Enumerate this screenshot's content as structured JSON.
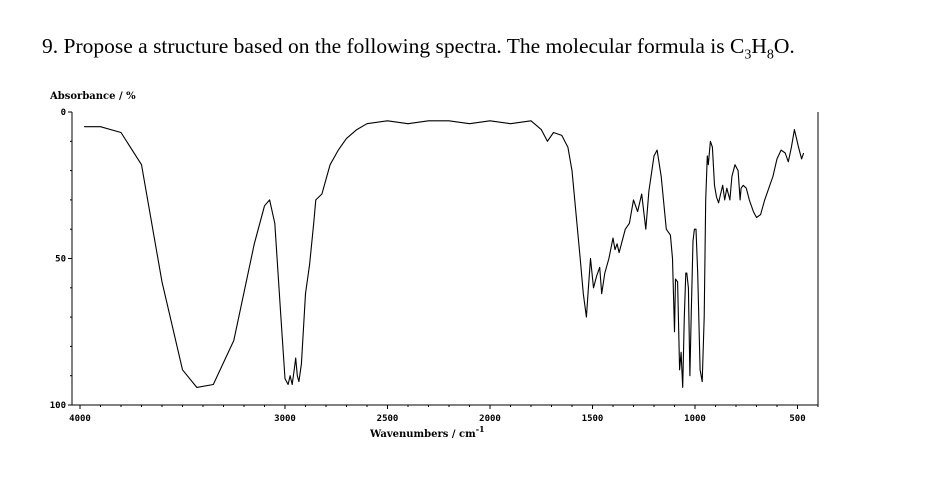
{
  "question": {
    "prefix": "9. Propose a structure based on the following spectra. The molecular formula is C",
    "sub1": "3",
    "mid": "H",
    "sub2": "8",
    "suffix": "O."
  },
  "chart_data": {
    "type": "line",
    "title": "",
    "ylabel": "Absorbance / %",
    "xlabel_main": "Wavenumbers / cm",
    "xlabel_sup": "-1",
    "xlim": [
      4000,
      400
    ],
    "ylim": [
      0,
      100
    ],
    "x_reversed": true,
    "y_reversed": true,
    "y_ticks": [
      "0",
      "50",
      "100"
    ],
    "x_ticks": [
      "4000",
      "3000",
      "2500",
      "2000",
      "1500",
      "1000",
      "500"
    ],
    "x_tick_values": [
      4000,
      3000,
      2500,
      2000,
      1500,
      1000,
      500
    ],
    "y_tick_values": [
      0,
      50,
      100
    ],
    "grid": false,
    "series": [
      {
        "name": "",
        "points": [
          [
            3980,
            5
          ],
          [
            3900,
            5
          ],
          [
            3800,
            7
          ],
          [
            3700,
            18
          ],
          [
            3600,
            58
          ],
          [
            3500,
            88
          ],
          [
            3430,
            94
          ],
          [
            3350,
            93
          ],
          [
            3250,
            78
          ],
          [
            3150,
            45
          ],
          [
            3100,
            32
          ],
          [
            3075,
            30
          ],
          [
            3050,
            38
          ],
          [
            3020,
            70
          ],
          [
            3000,
            91
          ],
          [
            2985,
            93
          ],
          [
            2975,
            90
          ],
          [
            2965,
            93
          ],
          [
            2955,
            88
          ],
          [
            2948,
            84
          ],
          [
            2940,
            90
          ],
          [
            2932,
            92
          ],
          [
            2920,
            86
          ],
          [
            2900,
            62
          ],
          [
            2880,
            52
          ],
          [
            2860,
            38
          ],
          [
            2850,
            30
          ],
          [
            2820,
            28
          ],
          [
            2780,
            18
          ],
          [
            2740,
            13
          ],
          [
            2700,
            9
          ],
          [
            2650,
            6
          ],
          [
            2600,
            4
          ],
          [
            2500,
            3
          ],
          [
            2400,
            4
          ],
          [
            2300,
            3
          ],
          [
            2200,
            3
          ],
          [
            2100,
            4
          ],
          [
            2000,
            3
          ],
          [
            1900,
            4
          ],
          [
            1800,
            3
          ],
          [
            1750,
            6
          ],
          [
            1720,
            10
          ],
          [
            1690,
            7
          ],
          [
            1650,
            8
          ],
          [
            1620,
            12
          ],
          [
            1600,
            20
          ],
          [
            1580,
            35
          ],
          [
            1560,
            50
          ],
          [
            1545,
            62
          ],
          [
            1530,
            70
          ],
          [
            1520,
            60
          ],
          [
            1510,
            50
          ],
          [
            1495,
            60
          ],
          [
            1480,
            56
          ],
          [
            1465,
            53
          ],
          [
            1455,
            62
          ],
          [
            1440,
            55
          ],
          [
            1420,
            50
          ],
          [
            1400,
            43
          ],
          [
            1390,
            47
          ],
          [
            1380,
            45
          ],
          [
            1370,
            48
          ],
          [
            1340,
            40
          ],
          [
            1320,
            38
          ],
          [
            1300,
            30
          ],
          [
            1280,
            34
          ],
          [
            1260,
            28
          ],
          [
            1240,
            40
          ],
          [
            1225,
            27
          ],
          [
            1200,
            15
          ],
          [
            1185,
            13
          ],
          [
            1165,
            22
          ],
          [
            1140,
            40
          ],
          [
            1120,
            42
          ],
          [
            1110,
            50
          ],
          [
            1100,
            75
          ],
          [
            1095,
            57
          ],
          [
            1085,
            58
          ],
          [
            1075,
            88
          ],
          [
            1068,
            82
          ],
          [
            1060,
            94
          ],
          [
            1052,
            70
          ],
          [
            1045,
            55
          ],
          [
            1040,
            55
          ],
          [
            1032,
            60
          ],
          [
            1025,
            90
          ],
          [
            1018,
            68
          ],
          [
            1010,
            44
          ],
          [
            1003,
            40
          ],
          [
            995,
            40
          ],
          [
            987,
            55
          ],
          [
            975,
            88
          ],
          [
            965,
            92
          ],
          [
            955,
            70
          ],
          [
            948,
            30
          ],
          [
            940,
            15
          ],
          [
            935,
            18
          ],
          [
            925,
            10
          ],
          [
            915,
            12
          ],
          [
            905,
            25
          ],
          [
            895,
            29
          ],
          [
            885,
            31
          ],
          [
            875,
            28
          ],
          [
            865,
            25
          ],
          [
            855,
            30
          ],
          [
            845,
            26
          ],
          [
            830,
            30
          ],
          [
            820,
            22
          ],
          [
            805,
            18
          ],
          [
            790,
            20
          ],
          [
            780,
            30
          ],
          [
            775,
            26
          ],
          [
            765,
            25
          ],
          [
            750,
            26
          ],
          [
            735,
            30
          ],
          [
            715,
            34
          ],
          [
            700,
            36
          ],
          [
            680,
            35
          ],
          [
            660,
            30
          ],
          [
            640,
            26
          ],
          [
            620,
            22
          ],
          [
            600,
            16
          ],
          [
            580,
            13
          ],
          [
            560,
            14
          ],
          [
            545,
            17
          ],
          [
            530,
            12
          ],
          [
            515,
            6
          ],
          [
            505,
            9
          ],
          [
            495,
            12
          ],
          [
            480,
            16
          ],
          [
            470,
            14
          ]
        ]
      }
    ]
  }
}
